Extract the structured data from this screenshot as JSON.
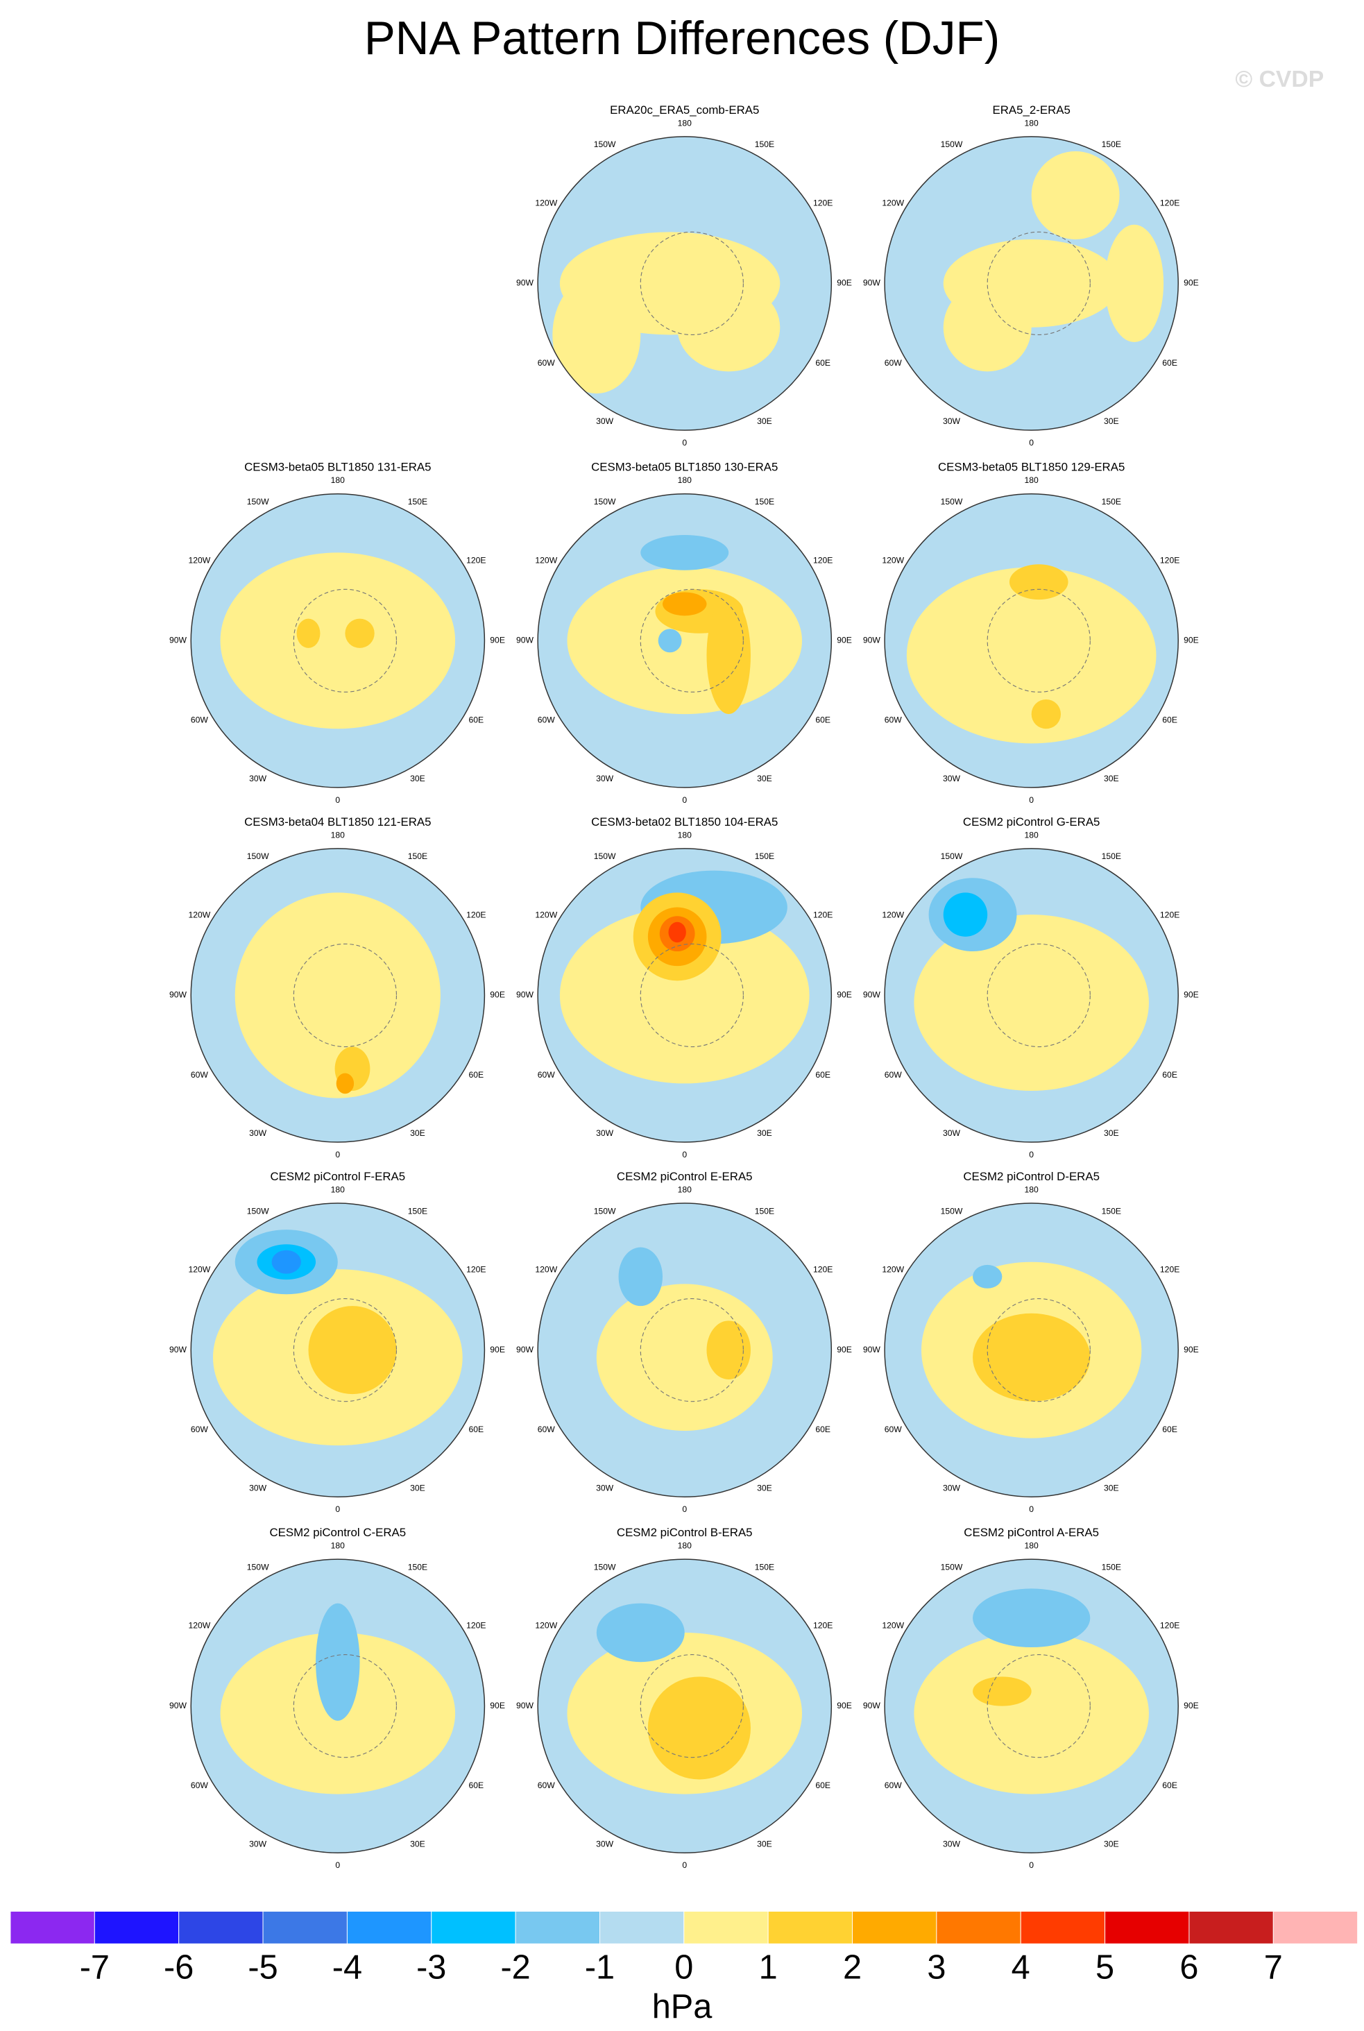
{
  "chart_data": {
    "type": "polar-map-panels",
    "title": "PNA Pattern Differences (DJF)",
    "watermark": "© CVDP",
    "panels": [
      "ERA20c_ERA5_comb-ERA5",
      "ERA5_2-ERA5",
      "CESM3-beta05 BLT1850 131-ERA5",
      "CESM3-beta05 BLT1850 130-ERA5",
      "CESM3-beta05 BLT1850 129-ERA5",
      "CESM3-beta04 BLT1850 121-ERA5",
      "CESM3-beta02 BLT1850 104-ERA5",
      "CESM2 piControl G-ERA5",
      "CESM2 piControl F-ERA5",
      "CESM2 piControl E-ERA5",
      "CESM2 piControl D-ERA5",
      "CESM2 piControl C-ERA5",
      "CESM2 piControl B-ERA5",
      "CESM2 piControl A-ERA5"
    ],
    "longitude_labels": [
      "180",
      "150E",
      "120E",
      "90E",
      "60E",
      "30E",
      "0",
      "30W",
      "60W",
      "90W",
      "120W",
      "150W"
    ],
    "colorbar": {
      "colors": [
        "#8c28f0",
        "#1e14ff",
        "#2d46e6",
        "#3c78e6",
        "#1e96ff",
        "#00c0ff",
        "#78c8f0",
        "#b4dcf0",
        "#fff08c",
        "#ffd232",
        "#ffaa00",
        "#ff7800",
        "#ff3c00",
        "#e60000",
        "#c81e1e",
        "#ffb4b4"
      ],
      "ticks": [
        -7,
        -6,
        -5,
        -4,
        -3,
        -2,
        -1,
        0,
        1,
        2,
        3,
        4,
        5,
        6,
        7
      ],
      "label": "hPa"
    }
  }
}
